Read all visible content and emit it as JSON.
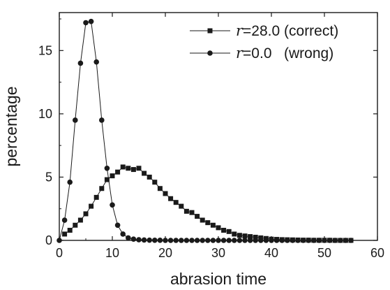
{
  "chart_data": {
    "type": "line",
    "title": "",
    "xlabel": "abrasion time",
    "ylabel": "percentage",
    "xlim": [
      0,
      60
    ],
    "ylim": [
      0,
      18
    ],
    "xticks": [
      0,
      10,
      20,
      30,
      40,
      50,
      60
    ],
    "yticks": [
      0,
      5,
      10,
      15
    ],
    "grid": false,
    "legend_position": "top-right",
    "colors": {
      "line": "#1a1a1a",
      "marker": "#1a1a1a"
    },
    "series": [
      {
        "name_symbol": "r",
        "name_rest": "=28.0 (correct)",
        "marker": "square",
        "x": [
          1,
          2,
          3,
          4,
          5,
          6,
          7,
          8,
          9,
          10,
          11,
          12,
          13,
          14,
          15,
          16,
          17,
          18,
          19,
          20,
          21,
          22,
          23,
          24,
          25,
          26,
          27,
          28,
          29,
          30,
          31,
          32,
          33,
          34,
          35,
          36,
          37,
          38,
          39,
          40,
          41,
          42,
          43,
          44,
          45,
          46,
          47,
          48,
          49,
          50,
          51,
          52,
          53,
          54,
          55
        ],
        "values": [
          0.5,
          0.8,
          1.2,
          1.6,
          2.1,
          2.7,
          3.4,
          4.1,
          4.8,
          5.1,
          5.4,
          5.8,
          5.7,
          5.6,
          5.7,
          5.3,
          5.0,
          4.6,
          4.1,
          3.7,
          3.3,
          3.0,
          2.7,
          2.3,
          2.2,
          1.9,
          1.6,
          1.4,
          1.2,
          1.0,
          0.8,
          0.7,
          0.5,
          0.4,
          0.35,
          0.3,
          0.25,
          0.2,
          0.15,
          0.1,
          0.08,
          0.06,
          0.05,
          0.04,
          0.03,
          0.02,
          0.02,
          0.01,
          0.01,
          0.01,
          0.01,
          0.0,
          0.0,
          0.0,
          0.0
        ]
      },
      {
        "name_symbol": "r",
        "name_rest": "=0.0   (wrong)",
        "marker": "circle",
        "x": [
          0,
          1,
          2,
          3,
          4,
          5,
          6,
          7,
          8,
          9,
          10,
          11,
          12,
          13,
          14,
          15,
          16,
          17,
          18,
          19,
          20,
          21,
          22,
          23,
          24,
          25,
          26,
          27,
          28,
          29,
          30,
          31,
          32,
          33,
          34,
          35,
          36,
          37,
          38,
          39,
          40,
          41,
          42,
          43,
          44,
          45,
          46,
          47,
          48,
          49,
          50,
          51,
          52,
          53,
          54,
          55
        ],
        "values": [
          0.0,
          1.6,
          4.6,
          9.5,
          14.0,
          17.2,
          17.3,
          14.1,
          9.5,
          5.7,
          2.8,
          1.2,
          0.5,
          0.2,
          0.1,
          0.05,
          0.03,
          0.02,
          0.01,
          0.01,
          0.0,
          0.0,
          0.0,
          0.0,
          0.0,
          0.0,
          0.0,
          0.0,
          0.0,
          0.0,
          0.0,
          0.0,
          0.0,
          0.0,
          0.0,
          0.0,
          0.0,
          0.0,
          0.0,
          0.0,
          0.0,
          0.0,
          0.0,
          0.0,
          0.0,
          0.0,
          0.0,
          0.0,
          0.0,
          0.0,
          0.0,
          0.0,
          0.0,
          0.0,
          0.0,
          0.0
        ]
      }
    ]
  }
}
